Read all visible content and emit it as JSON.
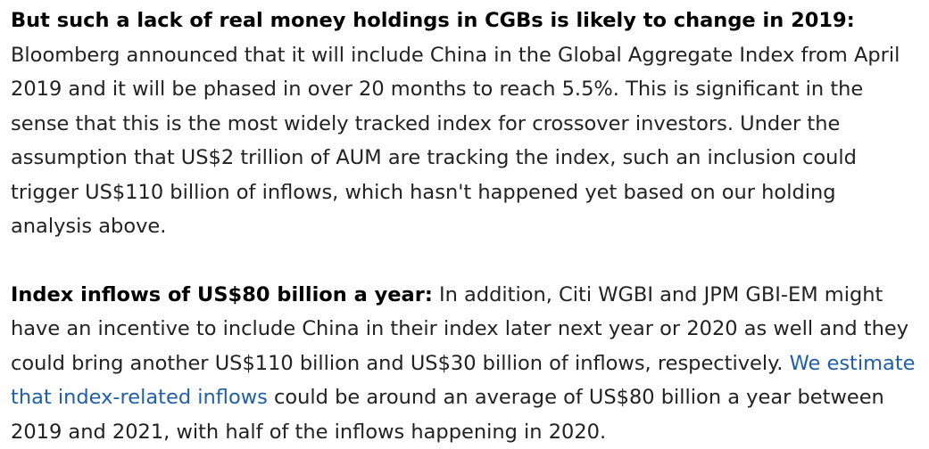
{
  "paragraphs": [
    {
      "lead": "But such a lack of real money holdings in CGBs is likely to change in 2019:",
      "body": " Bloomberg announced that it will include China in the Global Aggregate Index from April 2019 and it will be phased in over 20 months to reach 5.5%. This is significant in the sense that this is the most widely tracked index for crossover investors. Under the assumption that US$2 trillion of AUM are tracking the index, such an inclusion could trigger US$110 billion of inflows, which hasn't happened yet based on our holding analysis above."
    },
    {
      "lead": "Index inflows of US$80 billion a year:",
      "body_before_link": " In addition, Citi WGBI and JPM GBI-EM might have an incentive to include China in their index later next year or 2020 as well and they could bring another US$110 billion and US$30 billion of inflows, respectively. ",
      "link_text": "We estimate that index-related inflows",
      "body_after_link": " could be around an average of US$80 billion a year between 2019 and 2021, with half of the inflows happening in 2020."
    }
  ],
  "colors": {
    "text": "#222222",
    "lead": "#000000",
    "link": "#1f5fa8",
    "background": "#ffffff"
  }
}
